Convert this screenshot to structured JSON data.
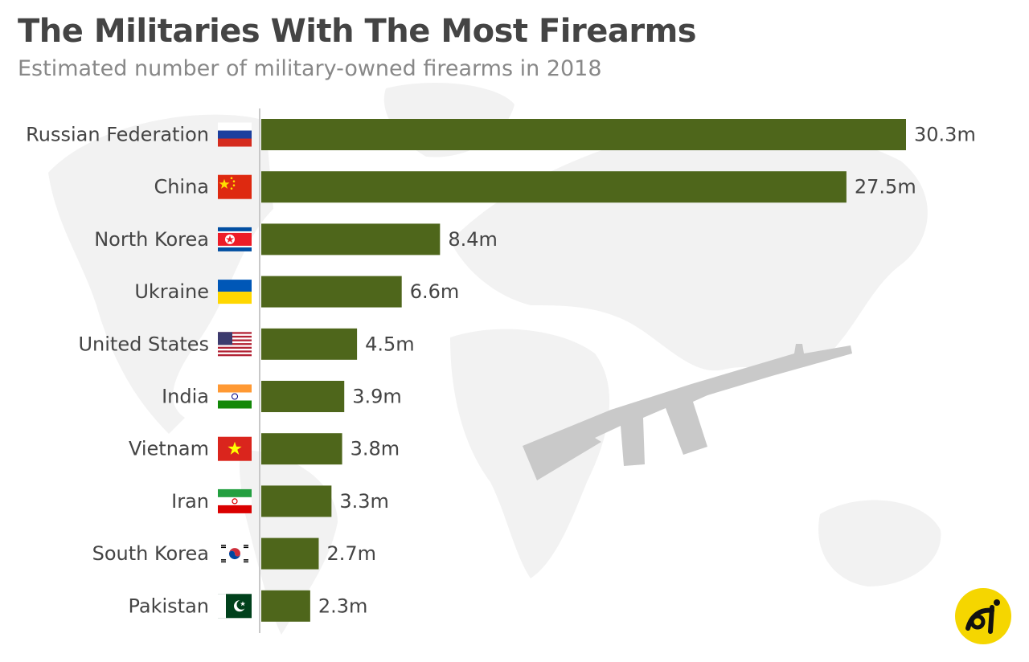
{
  "title": "The Militaries With The Most Firearms",
  "subtitle": "Estimated number of military-owned firearms in 2018",
  "colors": {
    "bar": "#4e661b",
    "text": "#444444",
    "subtitle": "#888888",
    "axis": "#c8c8c8"
  },
  "chart_data": {
    "type": "bar",
    "orientation": "horizontal",
    "unit": "m",
    "categories": [
      "Russian Federation",
      "China",
      "North Korea",
      "Ukraine",
      "United States",
      "India",
      "Vietnam",
      "Iran",
      "South Korea",
      "Pakistan"
    ],
    "values": [
      30.3,
      27.5,
      8.4,
      6.6,
      4.5,
      3.9,
      3.8,
      3.3,
      2.7,
      2.3
    ],
    "value_labels": [
      "30.3m",
      "27.5m",
      "8.4m",
      "6.6m",
      "4.5m",
      "3.9m",
      "3.8m",
      "3.3m",
      "2.7m",
      "2.3m"
    ],
    "flags": [
      "russia-flag-icon",
      "china-flag-icon",
      "north-korea-flag-icon",
      "ukraine-flag-icon",
      "usa-flag-icon",
      "india-flag-icon",
      "vietnam-flag-icon",
      "iran-flag-icon",
      "south-korea-flag-icon",
      "pakistan-flag-icon"
    ],
    "xlim": [
      0,
      30.3
    ],
    "grid": false,
    "legend": "none"
  }
}
